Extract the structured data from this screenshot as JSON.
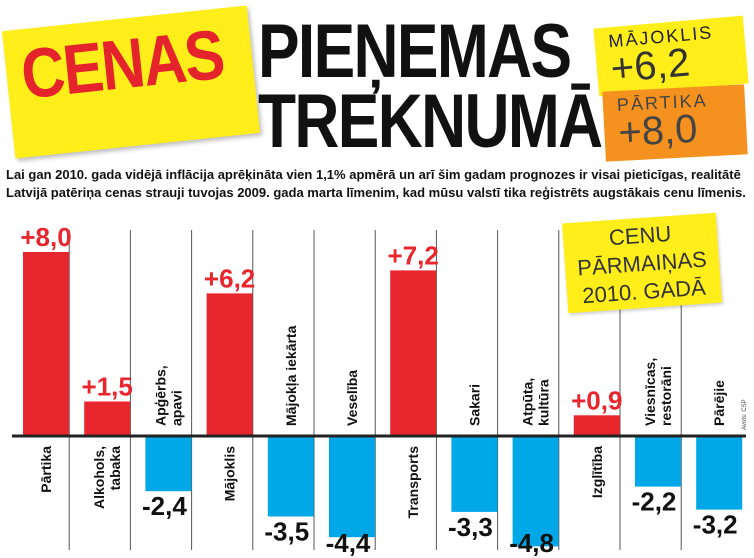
{
  "headline": {
    "sticker": "CENAS",
    "line1": "PIEŅEMAS",
    "line2": "TREKNUMĀ"
  },
  "stickers": [
    {
      "label": "MĀJOKLIS",
      "value": "+6,2",
      "color": "#ffee1a"
    },
    {
      "label": "PĀRTIKA",
      "value": "+8,0",
      "color": "#f5911e"
    }
  ],
  "intro": "Lai gan 2010. gada vidējā inflācija aprēķināta vien 1,1% apmērā un arī šim gadam prognozes ir visai pieticīgas, realitātē Latvijā patēriņa cenas strauji tuvojas 2009. gada marta līmenim, kad mūsu valstī tika reģistrēts augstākais cenu līmenis.",
  "callout": [
    "CENU",
    "PĀRMAIŅAS",
    "2010. GADĀ"
  ],
  "source": "Avots: CSP",
  "colors": {
    "positive": "#e8262d",
    "negative": "#00a8e8",
    "sticker_yellow": "#ffee1a"
  },
  "chart_data": {
    "type": "bar",
    "categories": [
      "Pārtika",
      "Alkohols, tabaka",
      "Apģērbs, apavi",
      "Mājoklis",
      "Mājokļa iekārta",
      "Veselība",
      "Transports",
      "Sakari",
      "Atpūta, kultūra",
      "Izglītība",
      "Viesnīcas, restorāni",
      "Pārējie"
    ],
    "category_lines": [
      [
        "Pārtika"
      ],
      [
        "Alkohols,",
        "tabaka"
      ],
      [
        "Apģērbs,",
        "apavi"
      ],
      [
        "Mājoklis"
      ],
      [
        "Mājokļa iekārta"
      ],
      [
        "Veselība"
      ],
      [
        "Transports"
      ],
      [
        "Sakari"
      ],
      [
        "Atpūta,",
        "kultūra"
      ],
      [
        "Izglītība"
      ],
      [
        "Viesnīcas,",
        "restorāni"
      ],
      [
        "Pārējie"
      ]
    ],
    "values": [
      8.0,
      1.5,
      -2.4,
      6.2,
      -3.5,
      -4.4,
      7.2,
      -3.3,
      -4.8,
      0.9,
      -2.2,
      -3.2
    ],
    "value_labels": [
      "+8,0",
      "+1,5",
      "-2,4",
      "+6,2",
      "-3,5",
      "-4,4",
      "+7,2",
      "-3,3",
      "-4,8",
      "+0,9",
      "-2,2",
      "-3,2"
    ],
    "title": "",
    "xlabel": "",
    "ylabel": "",
    "grid": false
  }
}
